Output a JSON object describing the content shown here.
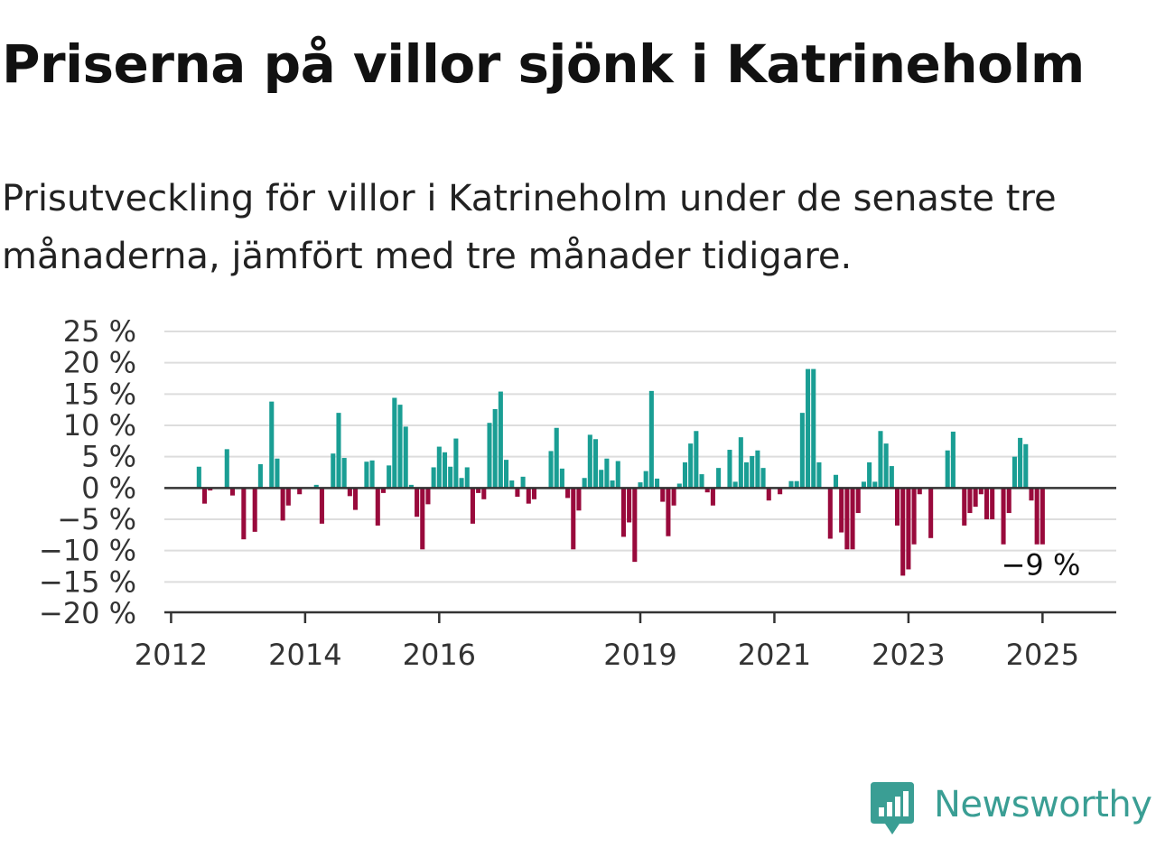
{
  "title": "Priserna på villor sjönk i Katrineholm",
  "subtitle": "Prisutveckling för villor i Katrineholm under de senaste tre månaderna, jämfört med tre månader tidigare.",
  "brand": {
    "name": "Newsworthy",
    "icon": "newsworthy-logo-icon",
    "color": "#3a9e94"
  },
  "colors": {
    "positive": "#1a9e94",
    "negative": "#990a3c",
    "grid": "#dddddd",
    "axis": "#333333"
  },
  "chart_data": {
    "type": "bar",
    "title": "Priserna på villor sjönk i Katrineholm",
    "xlabel": "",
    "ylabel": "",
    "ylim": [
      -20,
      25
    ],
    "xlim": [
      2011.9,
      2026.1
    ],
    "y_ticks": [
      25,
      20,
      15,
      10,
      5,
      0,
      -5,
      -10,
      -15,
      -20
    ],
    "y_tick_labels": [
      "25 %",
      "20 %",
      "15 %",
      "10 %",
      "5 %",
      "0 %",
      "−5 %",
      "−10 %",
      "−15 %",
      "−20 %"
    ],
    "x_ticks": [
      2012,
      2014,
      2016,
      2019,
      2021,
      2023,
      2025
    ],
    "x_tick_labels": [
      "2012",
      "2014",
      "2016",
      "2019",
      "2021",
      "2023",
      "2025"
    ],
    "grid": true,
    "legend": "none",
    "annotation": {
      "label": "−9 %",
      "value": -9
    },
    "series": [
      {
        "start": 2012.0,
        "step": 0.08333333,
        "values": [
          0,
          0,
          0,
          0,
          0,
          3.4,
          -2.5,
          -0.4,
          0,
          0,
          6.2,
          -1.2,
          0,
          -8.2,
          0,
          -7,
          3.8,
          0,
          13.8,
          4.7,
          -5.2,
          -2.8,
          0,
          -1,
          0,
          0,
          0.5,
          -5.7,
          0,
          5.5,
          12,
          4.8,
          -1.3,
          -3.5,
          0,
          4.2,
          4.4,
          -6,
          -0.8,
          3.6,
          14.4,
          13.3,
          9.8,
          0.5,
          -4.6,
          -9.8,
          -2.6,
          3.3,
          6.6,
          5.7,
          3.4,
          7.9,
          1.6,
          3.3,
          -5.7,
          -0.8,
          -1.8,
          10.4,
          12.6,
          15.4,
          4.5,
          1.2,
          -1.4,
          1.8,
          -2.5,
          -1.8,
          0,
          0,
          5.9,
          9.6,
          3.1,
          -1.6,
          -9.8,
          -3.6,
          1.6,
          8.5,
          7.8,
          2.9,
          4.7,
          1.2,
          4.3,
          -7.8,
          -5.5,
          -11.8,
          0.9,
          2.7,
          15.5,
          1.5,
          -2.2,
          -7.7,
          -2.8,
          0.7,
          4.1,
          7.1,
          9.1,
          2.2,
          -0.7,
          -2.8,
          3.2,
          0,
          6.1,
          1,
          8.1,
          4.1,
          5.1,
          6,
          3.2,
          -2,
          0,
          -1,
          0,
          1.1,
          1.1,
          12,
          19,
          19,
          4.1,
          0,
          -8.1,
          2.1,
          -7.1,
          -9.8,
          -9.8,
          -4,
          1,
          4.1,
          1,
          9.1,
          7.1,
          3.5,
          -6,
          -14,
          -13,
          -9,
          -1,
          0,
          -8,
          0,
          0,
          6,
          9,
          0,
          -6,
          -4,
          -3,
          -1,
          -5,
          -5,
          0,
          -9,
          -4,
          5,
          8,
          7,
          -2,
          -9,
          -9
        ]
      }
    ]
  }
}
